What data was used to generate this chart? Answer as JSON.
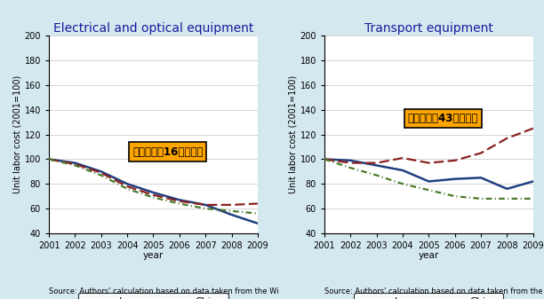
{
  "years": [
    2001,
    2002,
    2003,
    2004,
    2005,
    2006,
    2007,
    2008,
    2009
  ],
  "elec": {
    "japan": [
      100,
      97,
      90,
      80,
      73,
      67,
      63,
      55,
      48
    ],
    "korea": [
      100,
      96,
      89,
      78,
      71,
      66,
      63,
      63,
      64
    ],
    "china": [
      100,
      95,
      87,
      76,
      69,
      64,
      60,
      58,
      56
    ]
  },
  "transport": {
    "japan": [
      100,
      99,
      95,
      91,
      82,
      84,
      85,
      76,
      82
    ],
    "korea": [
      100,
      97,
      97,
      101,
      97,
      99,
      105,
      117,
      125
    ],
    "china": [
      100,
      93,
      87,
      80,
      75,
      70,
      68,
      68,
      68
    ]
  },
  "title_elec": "Electrical and optical equipment",
  "title_transport": "Transport equipment",
  "ylabel": "Unit labor cost (2001=100)",
  "xlabel": "year",
  "ylim": [
    40,
    200
  ],
  "yticks": [
    40,
    60,
    80,
    100,
    120,
    140,
    160,
    180,
    200
  ],
  "annotation_elec": "日韓の差：16ポイント",
  "annotation_transport": "日韓の差：43ポイント",
  "source_text_left": "Source: Authors' calculation based on data taken from the Wi",
  "source_text_right": "Source: Authors' calculation based on data taken from the WIOD",
  "japan_color": "#1F3F7F",
  "korea_color": "#8B2020",
  "china_color": "#4A7A2A",
  "bg_color": "#D4E8F0",
  "plot_bg_color": "#FFFFFF",
  "annot_bg_color": "#FFA500",
  "title_color": "#1a1a9c",
  "title_fontsize": 10,
  "label_fontsize": 7.5,
  "tick_fontsize": 7,
  "source_fontsize": 6,
  "legend_fontsize": 8,
  "annot_fontsize": 8.5
}
